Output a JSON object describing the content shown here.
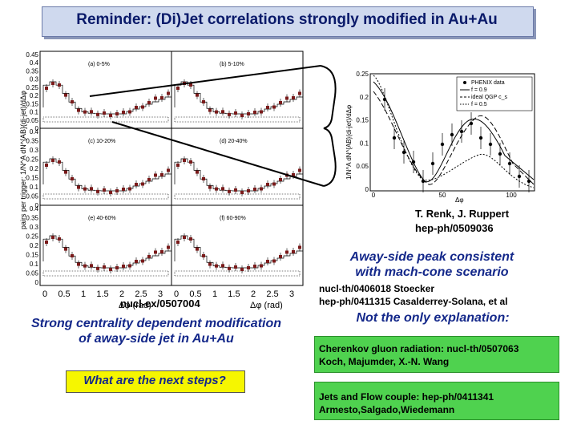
{
  "slide_title": "Reminder: (Di)Jet correlations strongly modified in Au+Au",
  "left_figure": {
    "y_axis_label": "pairs per trigger: 1/N^A dN^{AB}(di-jet)/dΔφ",
    "x_axis_label": "Δφ (rad)",
    "x_ticks": [
      "0",
      "0.5",
      "1",
      "1.5",
      "2",
      "2.5",
      "3"
    ],
    "y_ticks_top": [
      "0.45",
      "0.4",
      "0.35",
      "0.3",
      "0.25",
      "0.2",
      "0.15",
      "0.1",
      "0.05",
      "0"
    ],
    "y_ticks": [
      "0.4",
      "0.35",
      "0.3",
      "0.25",
      "0.2",
      "0.15",
      "0.1",
      "0.05",
      "0"
    ],
    "panel_labels": [
      "(a) 0-5%",
      "(b) 5-10%",
      "(c) 10-20%",
      "(d) 20-40%",
      "(e) 40-60%",
      "(f) 60-90%"
    ]
  },
  "right_figure": {
    "y_axis_label": "1/N^A dN^{AB}(di-jet)/dΔφ",
    "x_axis_label": "Δφ",
    "x_ticks": [
      "0",
      "50",
      "100"
    ],
    "y_ticks": [
      "0.25",
      "0.2",
      "0.15",
      "0.1",
      "0.05",
      "0"
    ],
    "legend": [
      "PHENIX data",
      "f = 0.9",
      "ideal QGP c_s",
      "f = 0.5"
    ]
  },
  "ref_renk": "T. Renk, J. Ruppert",
  "ref_renk_id": "hep-ph/0509036",
  "away_side_line1": "Away-side peak consistent",
  "away_side_line2": "with mach-cone scenario",
  "ref_stoecker": "nucl-th/0406018 Stoecker",
  "ref_casalderrey": "hep-ph/0411315 Casalderrey-Solana, et al",
  "not_only": "Not the only explanation:",
  "ref_nuclex": "nucl-ex/0507004",
  "strong_line1": "Strong centrality dependent modification",
  "strong_line2": "of away-side jet in Au+Au",
  "next_steps": "What are the next steps?",
  "cherenkov_line1": "Cherenkov gluon radiation: nucl-th/0507063",
  "cherenkov_line2": "Koch, Majumder, X.-N. Wang",
  "jets_line1": "Jets and Flow couple: hep-ph/0411341",
  "jets_line2": "Armesto,Salgado,Wiedemann"
}
